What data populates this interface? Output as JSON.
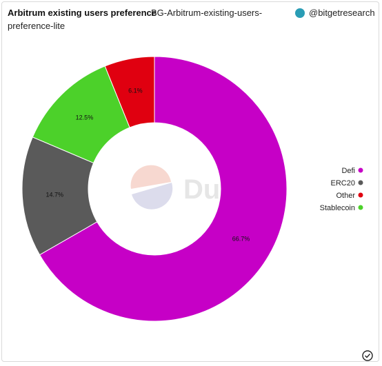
{
  "chart_data": {
    "type": "donut",
    "title": "Arbitrum existing users preference",
    "subtitle": "BG-Arbitrum-existing-users-preference-lite",
    "author": "@bitgetresearch",
    "watermark": "Dune",
    "categories": [
      "Defi",
      "ERC20",
      "Stablecoin",
      "Other"
    ],
    "values": [
      66.7,
      14.7,
      12.5,
      6.1
    ],
    "value_labels": [
      "66.7%",
      "14.7%",
      "12.5%",
      "6.1%"
    ],
    "colors": [
      "#c600c6",
      "#5a5a5a",
      "#4cd12a",
      "#e00010"
    ],
    "legend": "right"
  }
}
